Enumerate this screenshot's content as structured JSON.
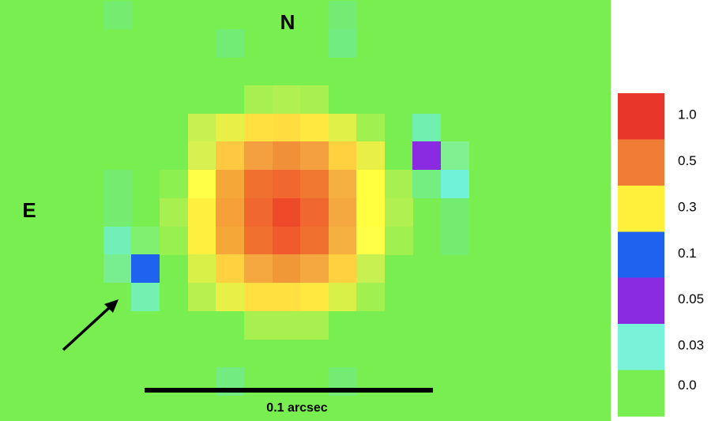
{
  "labels": {
    "north": "N",
    "east": "E",
    "scale": "0.1 arcsec"
  },
  "colorbar": [
    {
      "label": "1.0",
      "color": "#e8372a"
    },
    {
      "label": "0.5",
      "color": "#f07c35"
    },
    {
      "label": "0.3",
      "color": "#fff03c"
    },
    {
      "label": "0.1",
      "color": "#2062f0"
    },
    {
      "label": "0.05",
      "color": "#8a2be2"
    },
    {
      "label": "0.03",
      "color": "#78f2d8"
    },
    {
      "label": "0.0",
      "color": "#78ee50"
    }
  ]
}
